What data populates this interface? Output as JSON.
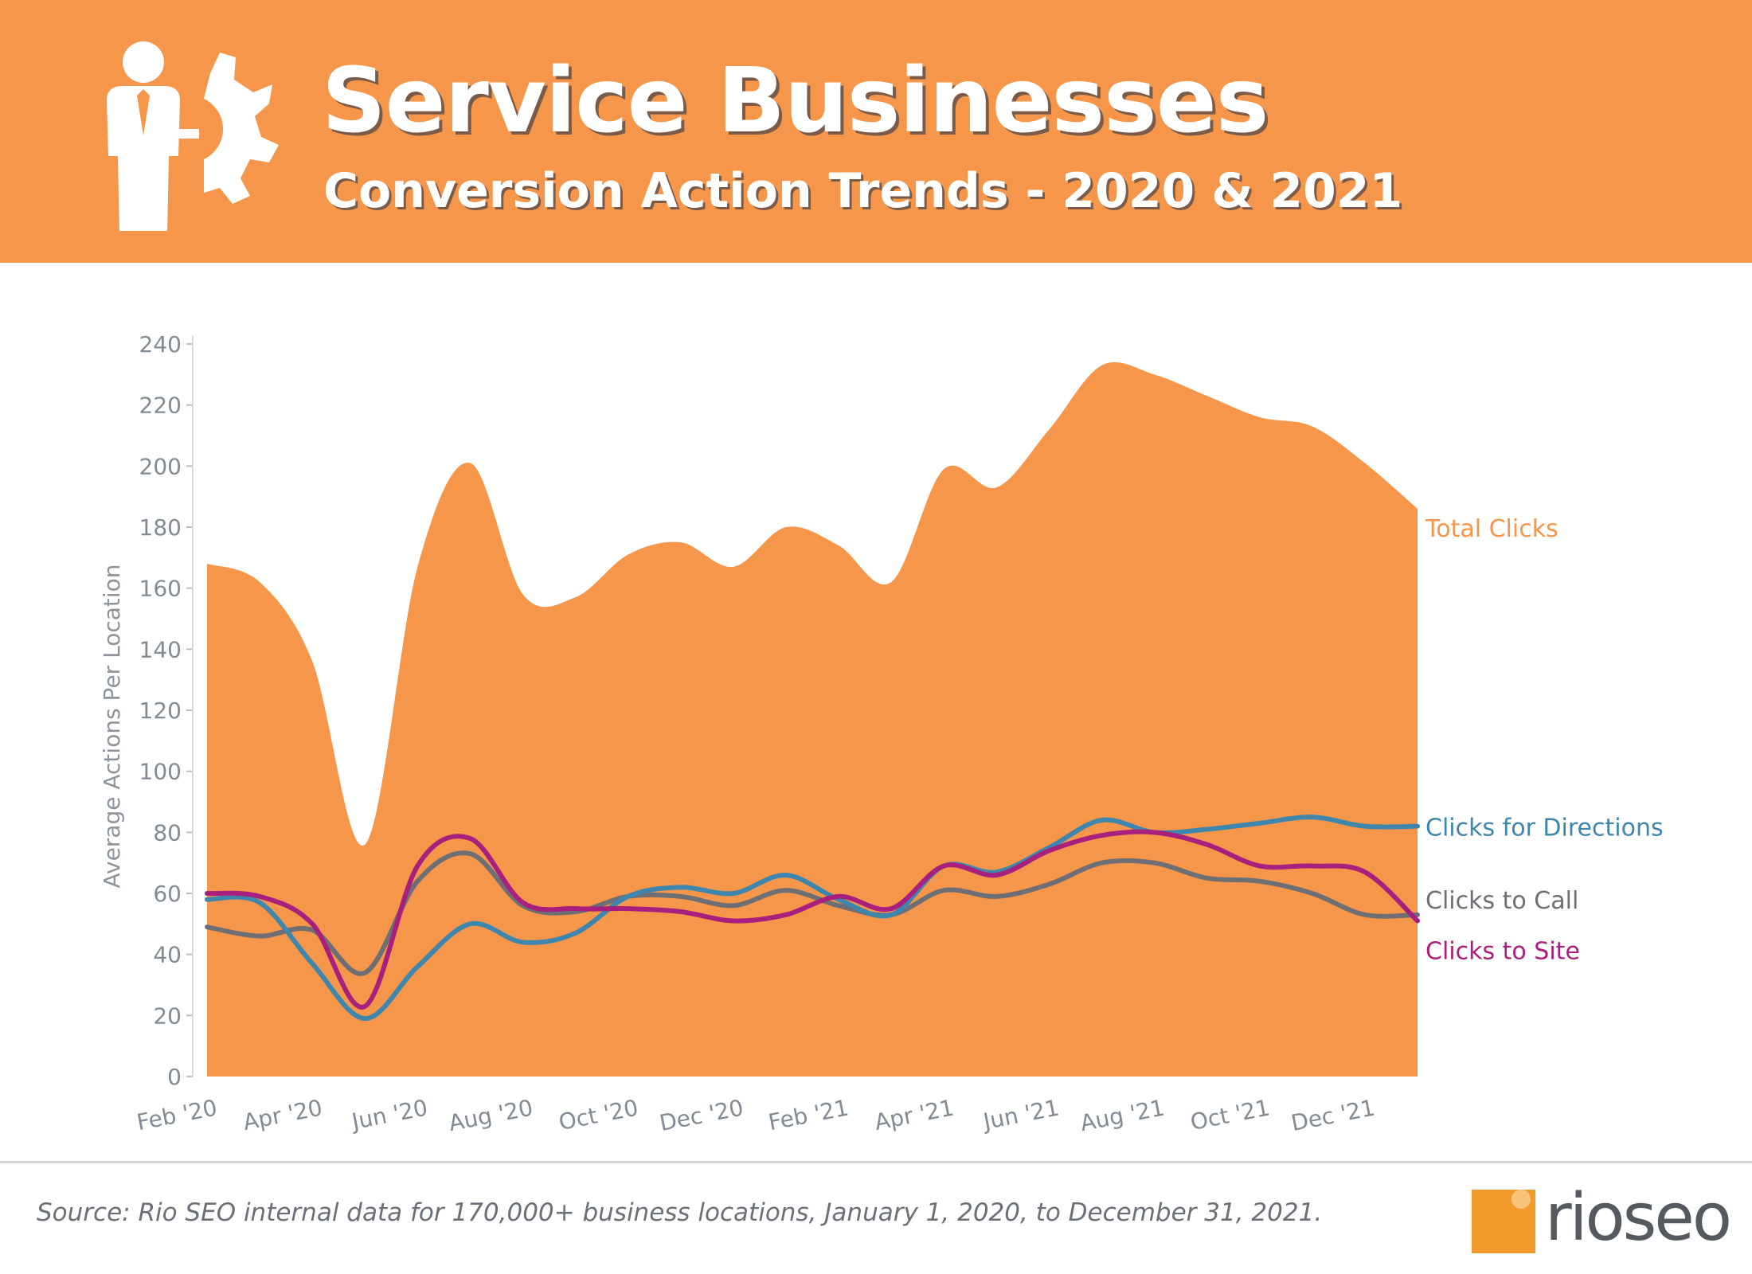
{
  "header": {
    "title": "Service Businesses",
    "subtitle": "Conversion Action Trends - 2020 & 2021",
    "icon": "businessperson-gear-icon"
  },
  "chart_data": {
    "type": "area",
    "x": [
      "Feb '20",
      "Mar '20",
      "Apr '20",
      "May '20",
      "Jun '20",
      "Jul '20",
      "Aug '20",
      "Sep '20",
      "Oct '20",
      "Nov '20",
      "Dec '20",
      "Jan '21",
      "Feb '21",
      "Mar '21",
      "Apr '21",
      "May '21",
      "Jun '21",
      "Jul '21",
      "Aug '21",
      "Sep '21",
      "Oct '21",
      "Nov '21",
      "Dec '21",
      "Jan '22"
    ],
    "x_tick_labels": [
      "Feb '20",
      "Apr '20",
      "Jun '20",
      "Aug '20",
      "Oct '20",
      "Dec '20",
      "Feb '21",
      "Apr '21",
      "Jun '21",
      "Aug '21",
      "Oct '21",
      "Dec '21"
    ],
    "ylabel": "Average Actions Per Location",
    "ylim": [
      0,
      240
    ],
    "yticks": [
      0,
      20,
      40,
      60,
      80,
      100,
      120,
      140,
      160,
      180,
      200,
      220,
      240
    ],
    "series": [
      {
        "name": "Total Clicks",
        "style": "area",
        "color": "#f5964a",
        "values": [
          168,
          162,
          136,
          76,
          167,
          201,
          158,
          157,
          171,
          175,
          167,
          180,
          174,
          162,
          199,
          193,
          212,
          233,
          230,
          223,
          216,
          213,
          201,
          186
        ]
      },
      {
        "name": "Clicks for Directions",
        "style": "line",
        "color": "#3e86ad",
        "values": [
          58,
          57,
          37,
          19,
          36,
          50,
          44,
          47,
          59,
          62,
          60,
          66,
          58,
          53,
          69,
          67,
          75,
          84,
          80,
          81,
          83,
          85,
          82,
          82
        ]
      },
      {
        "name": "Clicks to Call",
        "style": "line",
        "color": "#6d6f75",
        "values": [
          49,
          46,
          48,
          34,
          64,
          73,
          56,
          54,
          59,
          59,
          56,
          61,
          56,
          53,
          61,
          59,
          63,
          70,
          70,
          65,
          64,
          60,
          53,
          53
        ]
      },
      {
        "name": "Clicks to Site",
        "style": "line",
        "color": "#a81f7d",
        "values": [
          60,
          59,
          50,
          23,
          69,
          78,
          57,
          55,
          55,
          54,
          51,
          53,
          59,
          55,
          69,
          66,
          74,
          79,
          80,
          76,
          69,
          69,
          67,
          51
        ]
      }
    ]
  },
  "footer": {
    "source": "Source: Rio SEO internal data for 170,000+ business locations, January 1, 2020, to December 31, 2021.",
    "logo_text": "rioseo",
    "logo_color": "#f39a2c"
  }
}
